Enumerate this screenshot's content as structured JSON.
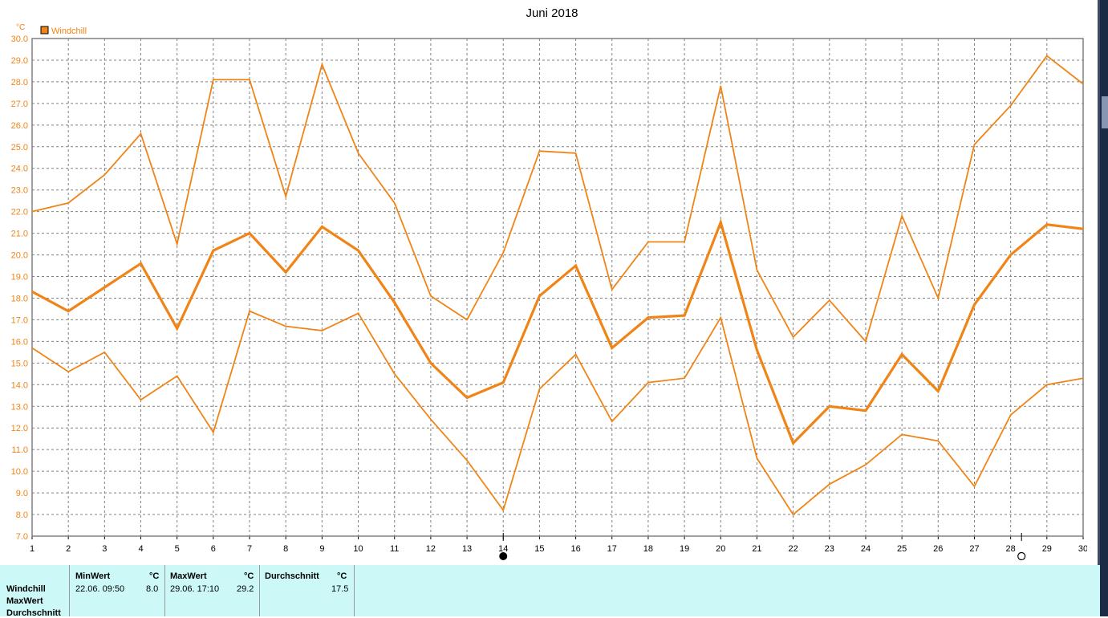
{
  "chart_data": {
    "type": "line",
    "title": "Juni 2018",
    "ylabel": "°C",
    "legend": [
      "Windchill"
    ],
    "legend_position": "top-left",
    "grid": true,
    "ylim": [
      7.0,
      30.0
    ],
    "xlim": [
      1,
      30
    ],
    "y_ticks": [
      "7.0",
      "8.0",
      "9.0",
      "10.0",
      "11.0",
      "12.0",
      "13.0",
      "14.0",
      "15.0",
      "16.0",
      "17.0",
      "18.0",
      "19.0",
      "20.0",
      "21.0",
      "22.0",
      "23.0",
      "24.0",
      "25.0",
      "26.0",
      "27.0",
      "28.0",
      "29.0",
      "30.0"
    ],
    "x": [
      1,
      2,
      3,
      4,
      5,
      6,
      7,
      8,
      9,
      10,
      11,
      12,
      13,
      14,
      15,
      16,
      17,
      18,
      19,
      20,
      21,
      22,
      23,
      24,
      25,
      26,
      27,
      28,
      29,
      30
    ],
    "x_ticks": [
      "1",
      "2",
      "3",
      "4",
      "5",
      "6",
      "7",
      "8",
      "9",
      "10",
      "11",
      "12",
      "13",
      "14",
      "15",
      "16",
      "17",
      "18",
      "19",
      "20",
      "21",
      "22",
      "23",
      "24",
      "25",
      "26",
      "27",
      "28",
      "29",
      "30"
    ],
    "series": [
      {
        "values": [
          22.0,
          22.4,
          23.7,
          25.6,
          20.5,
          28.1,
          28.1,
          22.7,
          28.8,
          24.7,
          22.4,
          18.1,
          17.0,
          20.1,
          24.8,
          24.7,
          18.4,
          20.6,
          20.6,
          27.8,
          19.3,
          16.2,
          17.9,
          16.0,
          21.8,
          18.0,
          25.1,
          26.9,
          29.2,
          27.9
        ]
      },
      {
        "values": [
          18.3,
          17.4,
          18.5,
          19.6,
          16.6,
          20.2,
          21.0,
          19.2,
          21.3,
          20.2,
          17.8,
          15.0,
          13.4,
          14.1,
          18.1,
          19.5,
          15.7,
          17.1,
          17.2,
          21.5,
          15.6,
          11.3,
          13.0,
          12.8,
          15.4,
          13.7,
          17.7,
          20.0,
          21.4,
          21.2
        ],
        "emphasis": "bold"
      },
      {
        "values": [
          15.7,
          14.6,
          15.5,
          13.3,
          14.4,
          11.8,
          17.4,
          16.7,
          16.5,
          17.3,
          14.5,
          12.4,
          10.5,
          8.2,
          13.8,
          15.4,
          12.3,
          14.1,
          14.3,
          17.1,
          10.6,
          8.0,
          9.4,
          10.3,
          11.7,
          11.4,
          9.3,
          12.6,
          14.0,
          14.3
        ]
      }
    ],
    "markers": [
      {
        "x": 14,
        "symbol": "filled-circle"
      },
      {
        "x": 28.3,
        "symbol": "open-circle"
      }
    ],
    "colors": {
      "line": "#f08416",
      "grid": "#808080",
      "axis": "#808080"
    }
  },
  "stats": {
    "row_labels": [
      "Windchill",
      "MaxWert",
      "Durchschnitt"
    ],
    "min": {
      "header": "MinWert",
      "unit": "°C",
      "datetime": "22.06.  09:50",
      "value": "8.0"
    },
    "max": {
      "header": "MaxWert",
      "unit": "°C",
      "datetime": "29.06.  17:10",
      "value": "29.2"
    },
    "avg": {
      "header": "Durchschnitt",
      "unit": "°C",
      "value": "17.5"
    }
  },
  "colors": {
    "stats_bg": "#cdf8f8",
    "title": "#000000",
    "accent": "#f08416"
  }
}
